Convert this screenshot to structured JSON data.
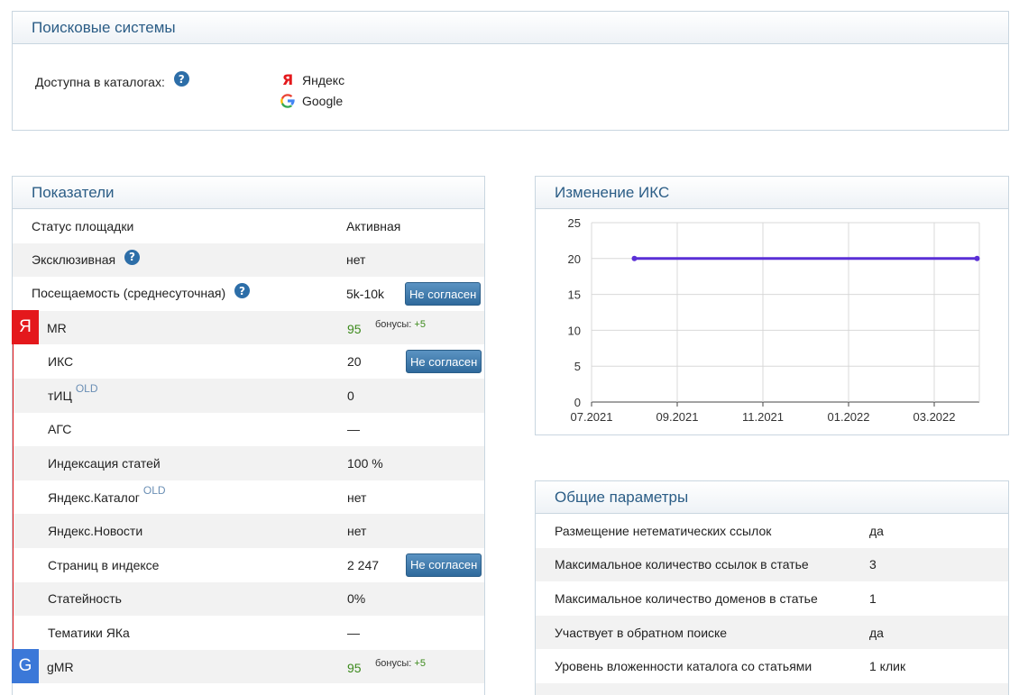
{
  "search_panel": {
    "title": "Поисковые системы",
    "available_label": "Доступна в каталогах:",
    "help_glyph": "?",
    "catalogs": [
      {
        "logo": "Я",
        "name": "Яндекс"
      },
      {
        "logo": "G",
        "name": "Google"
      }
    ]
  },
  "indicators": {
    "title": "Показатели",
    "rows": [
      {
        "label": "Статус площадки",
        "value": "Активная"
      },
      {
        "label": "Эксклюзивная",
        "value": "нет"
      },
      {
        "label": "Посещаемость (среднесуточная)",
        "value": "5k-10k",
        "button": "Не согласен"
      }
    ],
    "yandex": {
      "badge": "Я",
      "mr_label": "MR",
      "mr_value": "95",
      "bonus_label": "бонусы:",
      "bonus_value": "+5",
      "rows": [
        {
          "label": "ИКС",
          "value": "20",
          "button": "Не согласен"
        },
        {
          "label": "тИЦ",
          "old": "OLD",
          "value": "0"
        },
        {
          "label": "АГС",
          "value": "—"
        },
        {
          "label": "Индексация статей",
          "value": "100 %"
        },
        {
          "label": "Яндекс.Каталог",
          "old": "OLD",
          "value": "нет"
        },
        {
          "label": "Яндекс.Новости",
          "value": "нет"
        },
        {
          "label": "Страниц в индексе",
          "value": "2 247",
          "button": "Не согласен"
        },
        {
          "label": "Статейность",
          "value": "0%"
        },
        {
          "label": "Тематики ЯКа",
          "value": "—"
        }
      ]
    },
    "google": {
      "badge": "G",
      "mr_label": "gMR",
      "mr_value": "95",
      "bonus_label": "бонусы:",
      "bonus_value": "+5"
    }
  },
  "chart_panel": {
    "title": "Изменение ИКС"
  },
  "chart_data": {
    "type": "line",
    "title": "",
    "x_ticks": [
      "07.2021",
      "09.2021",
      "11.2021",
      "01.2022",
      "03.2022"
    ],
    "y_ticks": [
      0,
      5,
      10,
      15,
      20,
      25
    ],
    "ylim": [
      0,
      25
    ],
    "series": [
      {
        "points": [
          {
            "x": "08.2021",
            "y": 20
          },
          {
            "x": "04.2022",
            "y": 20
          }
        ],
        "color": "#5a2fd6"
      }
    ],
    "grid": true
  },
  "params_panel": {
    "title": "Общие параметры",
    "rows": [
      {
        "label": "Размещение нетематических ссылок",
        "value": "да"
      },
      {
        "label": "Максимальное количество ссылок в статье",
        "value": "3"
      },
      {
        "label": "Максимальное количество доменов в статье",
        "value": "1"
      },
      {
        "label": "Участвует в обратном поиске",
        "value": "да"
      },
      {
        "label": "Уровень вложенности каталога со статьями",
        "value": "1 клик"
      }
    ]
  }
}
